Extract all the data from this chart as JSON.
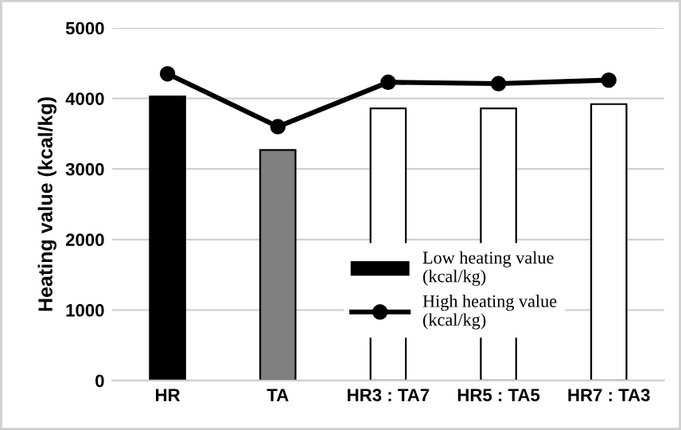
{
  "chart_data": {
    "type": "bar",
    "ylabel": "Heating value (kcal/kg)",
    "categories": [
      "HR",
      "TA",
      "HR3 : TA7",
      "HR5 : TA5",
      "HR7 : TA3"
    ],
    "series": [
      {
        "name": "Low heating value\n(kcal/kg)",
        "color": "#000000",
        "colors": [
          "#000000",
          "#808080",
          "#ffffff",
          "#ffffff",
          "#ffffff"
        ],
        "values": [
          4030,
          3270,
          3860,
          3860,
          3920
        ]
      },
      {
        "name": "High heating value\n(kcal/kg)",
        "type": "line",
        "color": "#000000",
        "marker": "circle",
        "line_style": "solid",
        "values": [
          4350,
          3600,
          4230,
          4210,
          4260
        ]
      }
    ],
    "ylim": [
      0,
      5000
    ],
    "yticks": [
      0,
      1000,
      2000,
      3000,
      4000,
      5000
    ],
    "grid": "y",
    "legend": "bottom"
  }
}
